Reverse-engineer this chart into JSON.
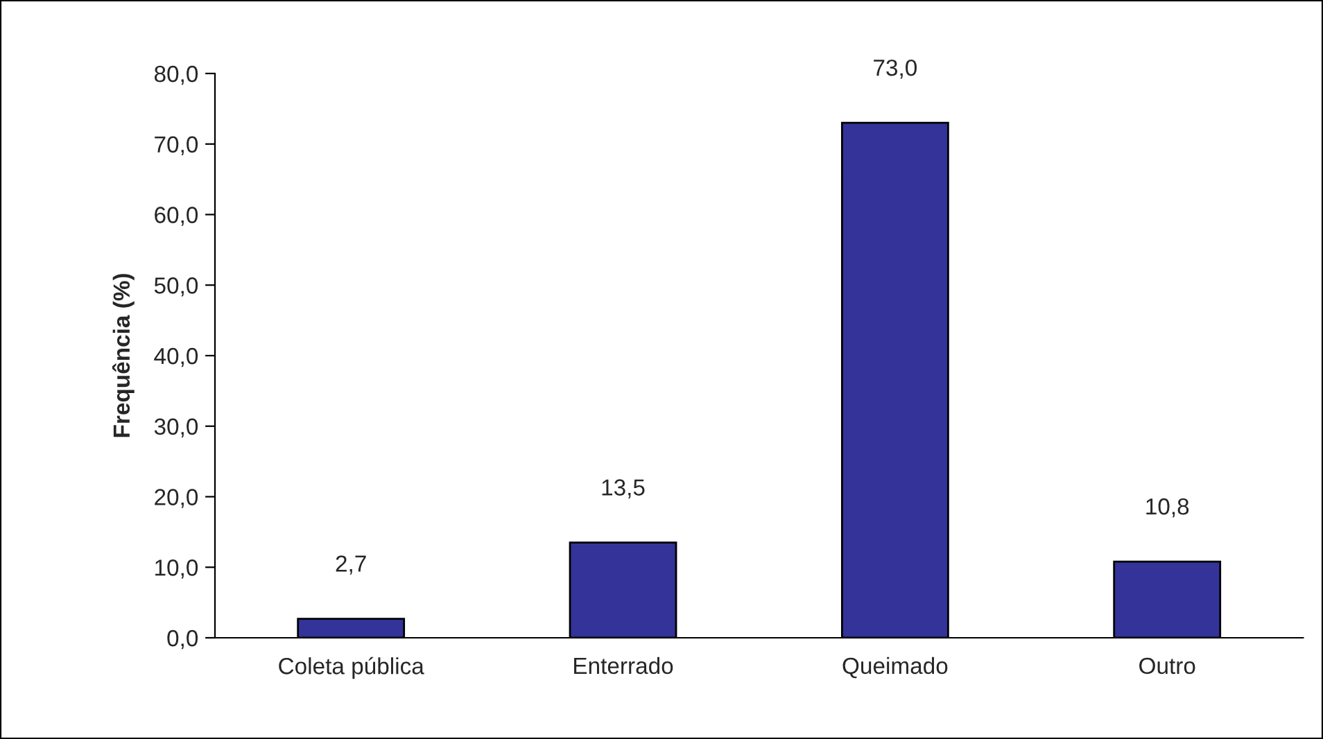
{
  "chart_data": {
    "type": "bar",
    "ylabel": "Frequência (%)",
    "categories": [
      "Coleta pública",
      "Enterrado",
      "Queimado",
      "Outro"
    ],
    "values": [
      2.7,
      13.5,
      73.0,
      10.8
    ],
    "value_labels": [
      "2,7",
      "13,5",
      "73,0",
      "10,8"
    ],
    "color": "#333399",
    "ylim": [
      0,
      80
    ],
    "yticks": [
      {
        "value": 0,
        "label": "0,0"
      },
      {
        "value": 10,
        "label": "10,0"
      },
      {
        "value": 20,
        "label": "20,0"
      },
      {
        "value": 30,
        "label": "30,0"
      },
      {
        "value": 40,
        "label": "40,0"
      },
      {
        "value": 50,
        "label": "50,0"
      },
      {
        "value": 60,
        "label": "60,0"
      },
      {
        "value": 70,
        "label": "70,0"
      },
      {
        "value": 80,
        "label": "80,0"
      }
    ],
    "grid": false,
    "legend": false
  }
}
